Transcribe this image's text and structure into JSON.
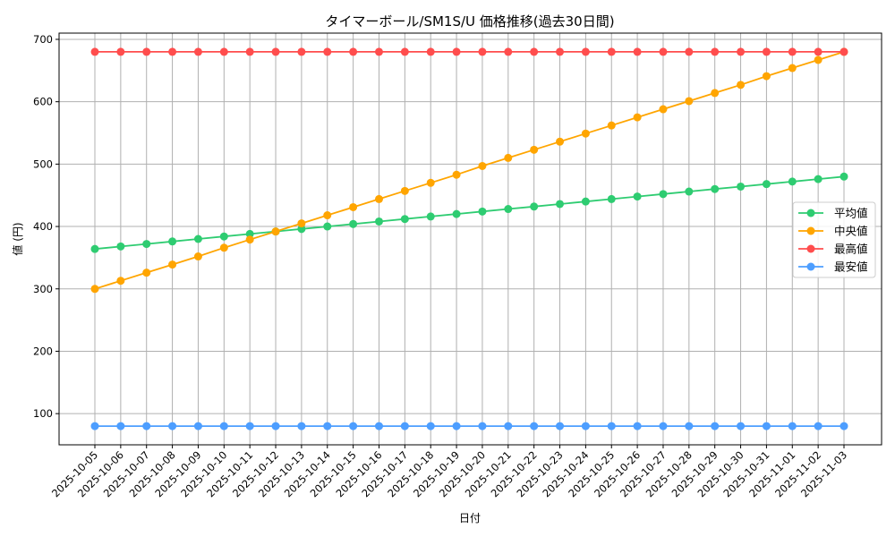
{
  "chart_data": {
    "type": "line",
    "title": "タイマーボール/SM1S/U 価格推移(過去30日間)",
    "xlabel": "日付",
    "ylabel": "値 (円)",
    "ylim": [
      50,
      710
    ],
    "yticks": [
      100,
      200,
      300,
      400,
      500,
      600,
      700
    ],
    "grid": true,
    "legend_position": "center right",
    "x": [
      "2025-10-05",
      "2025-10-06",
      "2025-10-07",
      "2025-10-08",
      "2025-10-09",
      "2025-10-10",
      "2025-10-11",
      "2025-10-12",
      "2025-10-13",
      "2025-10-14",
      "2025-10-15",
      "2025-10-16",
      "2025-10-17",
      "2025-10-18",
      "2025-10-19",
      "2025-10-20",
      "2025-10-21",
      "2025-10-22",
      "2025-10-23",
      "2025-10-24",
      "2025-10-25",
      "2025-10-26",
      "2025-10-27",
      "2025-10-28",
      "2025-10-29",
      "2025-10-30",
      "2025-10-31",
      "2025-11-01",
      "2025-11-02",
      "2025-11-03"
    ],
    "series": [
      {
        "name": "平均値",
        "color": "#2ecc71",
        "values": [
          364,
          368,
          372,
          376,
          380,
          384,
          388,
          392,
          396,
          400,
          404,
          408,
          412,
          416,
          420,
          424,
          428,
          432,
          436,
          440,
          444,
          448,
          452,
          456,
          460,
          464,
          468,
          472,
          476,
          480
        ]
      },
      {
        "name": "中央値",
        "color": "#ffa500",
        "values": [
          300,
          313,
          326,
          339,
          352,
          366,
          379,
          392,
          405,
          418,
          431,
          444,
          457,
          470,
          483,
          497,
          510,
          523,
          536,
          549,
          562,
          575,
          588,
          601,
          614,
          627,
          641,
          654,
          667,
          680
        ]
      },
      {
        "name": "最高値",
        "color": "#ff4d4d",
        "values": [
          680,
          680,
          680,
          680,
          680,
          680,
          680,
          680,
          680,
          680,
          680,
          680,
          680,
          680,
          680,
          680,
          680,
          680,
          680,
          680,
          680,
          680,
          680,
          680,
          680,
          680,
          680,
          680,
          680,
          680
        ]
      },
      {
        "name": "最安値",
        "color": "#4d9eff",
        "values": [
          80,
          80,
          80,
          80,
          80,
          80,
          80,
          80,
          80,
          80,
          80,
          80,
          80,
          80,
          80,
          80,
          80,
          80,
          80,
          80,
          80,
          80,
          80,
          80,
          80,
          80,
          80,
          80,
          80,
          80
        ]
      }
    ]
  }
}
